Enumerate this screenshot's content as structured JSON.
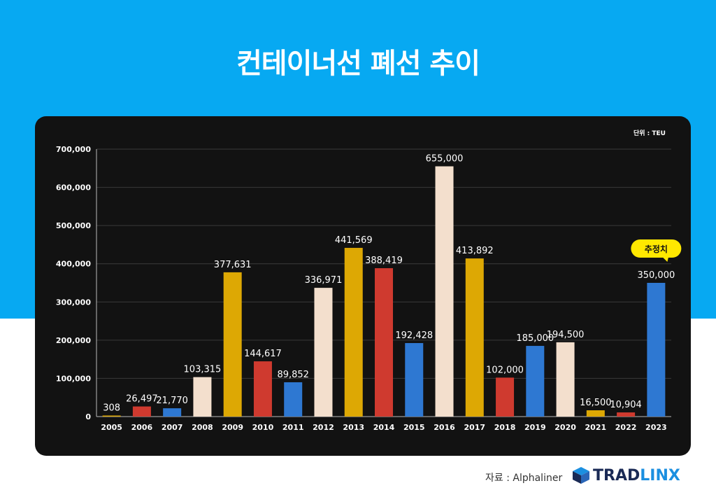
{
  "title": "컨테이너선 폐선 추이",
  "unit": "단위 : TEU",
  "source": "자료 : Alphaliner",
  "brand": {
    "part1": "TRAD",
    "part2": "LINX"
  },
  "colors": {
    "background_band": "#07a9f2",
    "card": "#121212",
    "gold": "#dda804",
    "red": "#cf3a2f",
    "blue": "#2e78d2",
    "cream": "#f3dfcd",
    "callout": "#ffe800"
  },
  "chart_data": {
    "type": "bar",
    "categories": [
      "2005",
      "2006",
      "2007",
      "2008",
      "2009",
      "2010",
      "2011",
      "2012",
      "2013",
      "2014",
      "2015",
      "2016",
      "2017",
      "2018",
      "2019",
      "2020",
      "2021",
      "2022",
      "2023"
    ],
    "values": [
      308,
      26497,
      21770,
      103315,
      377631,
      144617,
      89852,
      336971,
      441569,
      388419,
      192428,
      655000,
      413892,
      102000,
      185000,
      194500,
      16500,
      10904,
      350000
    ],
    "value_labels": [
      "308",
      "26,497",
      "21,770",
      "103,315",
      "377,631",
      "144,617",
      "89,852",
      "336,971",
      "441,569",
      "388,419",
      "192,428",
      "655,000",
      "413,892",
      "102,000",
      "185,000",
      "194,500",
      "16,500",
      "10,904",
      "350,000"
    ],
    "bar_colors": [
      "gold",
      "red",
      "blue",
      "cream",
      "gold",
      "red",
      "blue",
      "cream",
      "gold",
      "red",
      "blue",
      "cream",
      "gold",
      "red",
      "blue",
      "cream",
      "gold",
      "red",
      "blue"
    ],
    "yticks": [
      0,
      100000,
      200000,
      300000,
      400000,
      500000,
      600000,
      700000
    ],
    "ytick_labels": [
      "0",
      "100,000",
      "200,000",
      "300,000",
      "400,000",
      "500,000",
      "600,000",
      "700,000"
    ],
    "ylim": [
      0,
      700000
    ],
    "grid": true,
    "annotation": {
      "category": "2023",
      "text": "추정치"
    },
    "xlabel": "",
    "ylabel": ""
  }
}
